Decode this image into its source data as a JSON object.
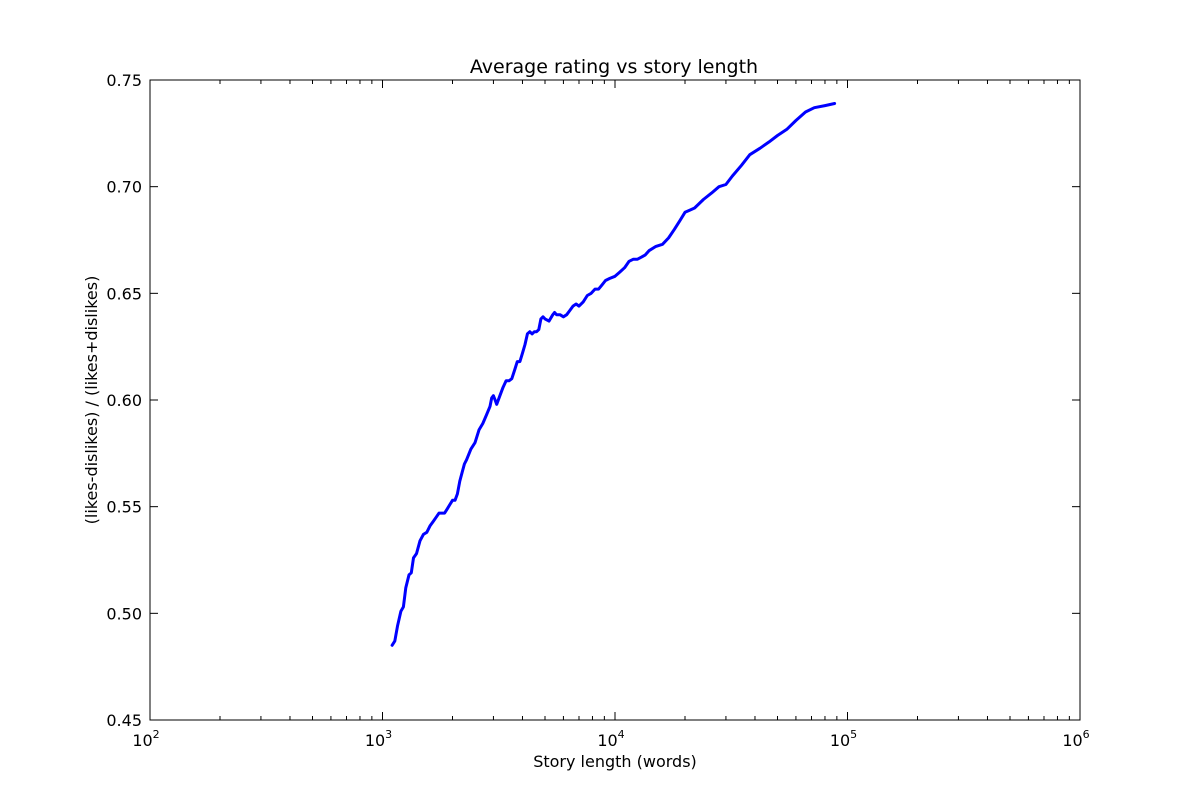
{
  "chart_data": {
    "type": "line",
    "title": "Average rating vs story length",
    "xlabel": "Story length (words)",
    "ylabel": "(likes-dislikes) / (likes+dislikes)",
    "xscale": "log",
    "xlim": [
      100,
      1000000
    ],
    "ylim": [
      0.45,
      0.75
    ],
    "grid": false,
    "legend": "none",
    "x_ticks": [
      {
        "value": 100,
        "base": "10",
        "exp": "2"
      },
      {
        "value": 1000,
        "base": "10",
        "exp": "3"
      },
      {
        "value": 10000,
        "base": "10",
        "exp": "4"
      },
      {
        "value": 100000,
        "base": "10",
        "exp": "5"
      },
      {
        "value": 1000000,
        "base": "10",
        "exp": "6"
      }
    ],
    "y_ticks": [
      {
        "value": 0.45,
        "label": "0.45"
      },
      {
        "value": 0.5,
        "label": "0.50"
      },
      {
        "value": 0.55,
        "label": "0.55"
      },
      {
        "value": 0.6,
        "label": "0.60"
      },
      {
        "value": 0.65,
        "label": "0.65"
      },
      {
        "value": 0.7,
        "label": "0.70"
      },
      {
        "value": 0.75,
        "label": "0.75"
      }
    ],
    "series": [
      {
        "color": "#0000ff",
        "x": [
          1100,
          1130,
          1160,
          1200,
          1230,
          1260,
          1300,
          1330,
          1360,
          1400,
          1450,
          1500,
          1550,
          1600,
          1650,
          1700,
          1750,
          1800,
          1850,
          1900,
          1950,
          2000,
          2050,
          2100,
          2150,
          2200,
          2250,
          2300,
          2400,
          2500,
          2600,
          2700,
          2800,
          2900,
          2950,
          3000,
          3050,
          3100,
          3200,
          3300,
          3400,
          3500,
          3600,
          3700,
          3800,
          3900,
          4000,
          4100,
          4200,
          4300,
          4400,
          4500,
          4600,
          4700,
          4800,
          4900,
          5000,
          5200,
          5400,
          5500,
          5600,
          5800,
          6000,
          6200,
          6400,
          6600,
          6800,
          7000,
          7300,
          7600,
          7900,
          8200,
          8500,
          8800,
          9100,
          9500,
          10000,
          10500,
          11000,
          11500,
          12000,
          12500,
          13000,
          13500,
          14000,
          15000,
          16000,
          17000,
          18000,
          19000,
          20000,
          21000,
          22000,
          24000,
          26000,
          28000,
          30000,
          32000,
          35000,
          38000,
          42000,
          46000,
          50000,
          55000,
          60000,
          66000,
          72000,
          80000,
          88000
        ],
        "y": [
          0.485,
          0.487,
          0.494,
          0.501,
          0.503,
          0.512,
          0.518,
          0.519,
          0.526,
          0.528,
          0.534,
          0.537,
          0.538,
          0.541,
          0.543,
          0.545,
          0.547,
          0.547,
          0.547,
          0.549,
          0.551,
          0.553,
          0.553,
          0.556,
          0.562,
          0.566,
          0.57,
          0.572,
          0.577,
          0.58,
          0.586,
          0.589,
          0.593,
          0.597,
          0.601,
          0.602,
          0.6,
          0.598,
          0.602,
          0.606,
          0.609,
          0.609,
          0.61,
          0.614,
          0.618,
          0.618,
          0.622,
          0.626,
          0.631,
          0.632,
          0.631,
          0.632,
          0.632,
          0.633,
          0.638,
          0.639,
          0.638,
          0.637,
          0.64,
          0.641,
          0.64,
          0.64,
          0.639,
          0.64,
          0.642,
          0.644,
          0.645,
          0.644,
          0.646,
          0.649,
          0.65,
          0.652,
          0.652,
          0.654,
          0.656,
          0.657,
          0.658,
          0.66,
          0.662,
          0.665,
          0.666,
          0.666,
          0.667,
          0.668,
          0.67,
          0.672,
          0.673,
          0.676,
          0.68,
          0.684,
          0.688,
          0.689,
          0.69,
          0.694,
          0.697,
          0.7,
          0.701,
          0.705,
          0.71,
          0.715,
          0.718,
          0.721,
          0.724,
          0.727,
          0.731,
          0.735,
          0.737,
          0.738,
          0.739
        ]
      }
    ]
  }
}
